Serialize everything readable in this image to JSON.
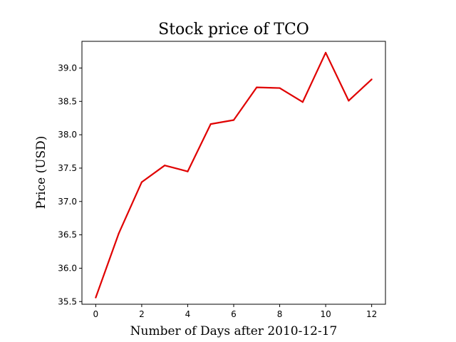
{
  "chart_data": {
    "type": "line",
    "title": "Stock price of TCO",
    "xlabel": "Number of Days after 2010-12-17",
    "ylabel": "Price (USD)",
    "x": [
      0,
      1,
      2,
      3,
      4,
      5,
      6,
      7,
      8,
      9,
      10,
      11,
      12
    ],
    "series": [
      {
        "values": [
          35.56,
          36.52,
          37.29,
          37.54,
          37.45,
          38.16,
          38.22,
          38.71,
          38.7,
          38.49,
          39.23,
          38.51,
          38.83
        ],
        "color": "#e00000"
      }
    ],
    "xlim": [
      -0.6,
      12.6
    ],
    "ylim": [
      35.46,
      39.4
    ],
    "xticks": [
      0,
      2,
      4,
      6,
      8,
      10,
      12
    ],
    "yticks": [
      35.5,
      36.0,
      36.5,
      37.0,
      37.5,
      38.0,
      38.5,
      39.0
    ],
    "xtick_labels": [
      "0",
      "2",
      "4",
      "6",
      "8",
      "10",
      "12"
    ],
    "ytick_labels": [
      "35.5",
      "36.0",
      "36.5",
      "37.0",
      "37.5",
      "38.0",
      "38.5",
      "39.0"
    ],
    "grid": false,
    "legend": "none"
  }
}
